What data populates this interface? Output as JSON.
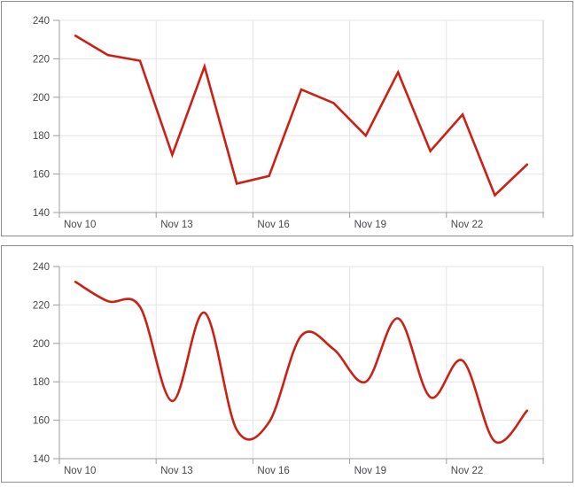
{
  "style": {
    "line_color": "#cc2015",
    "grid_color": "#e4e4e4",
    "axis_color": "#9c9c9c",
    "right_frame_color": "#c9c9c9",
    "label_color": "#47474d",
    "panel_border_color": "#8f8f8f",
    "panel_background": "#ffffff",
    "line_width": 2.6
  },
  "chart_data": [
    {
      "id": "linear-line-chart",
      "type": "line",
      "smoothing": "none",
      "title": "",
      "xlabel": "",
      "ylabel": "",
      "legend": "none",
      "grid": true,
      "x": [
        "Nov 10",
        "Nov 11",
        "Nov 12",
        "Nov 13",
        "Nov 14",
        "Nov 15",
        "Nov 16",
        "Nov 17",
        "Nov 18",
        "Nov 19",
        "Nov 20",
        "Nov 21",
        "Nov 22",
        "Nov 23",
        "Nov 24"
      ],
      "series": [
        {
          "name": "value",
          "color": "#cc2015",
          "values": [
            232,
            222,
            219,
            170,
            216,
            155,
            159,
            204,
            197,
            180,
            213,
            172,
            191,
            149,
            165
          ]
        }
      ],
      "ylim": [
        140,
        240
      ],
      "y_ticks": [
        140,
        160,
        180,
        200,
        220,
        240
      ],
      "x_tick_labels": [
        "Nov 10",
        "Nov 13",
        "Nov 16",
        "Nov 19",
        "Nov 22"
      ],
      "x_tick_every": 3
    },
    {
      "id": "spline-line-chart",
      "type": "line",
      "smoothing": "spline",
      "title": "",
      "xlabel": "",
      "ylabel": "",
      "legend": "none",
      "grid": true,
      "x": [
        "Nov 10",
        "Nov 11",
        "Nov 12",
        "Nov 13",
        "Nov 14",
        "Nov 15",
        "Nov 16",
        "Nov 17",
        "Nov 18",
        "Nov 19",
        "Nov 20",
        "Nov 21",
        "Nov 22",
        "Nov 23",
        "Nov 24"
      ],
      "series": [
        {
          "name": "value",
          "color": "#cc2015",
          "values": [
            232,
            222,
            219,
            170,
            216,
            155,
            159,
            204,
            197,
            180,
            213,
            172,
            191,
            149,
            165
          ]
        }
      ],
      "ylim": [
        140,
        240
      ],
      "y_ticks": [
        140,
        160,
        180,
        200,
        220,
        240
      ],
      "x_tick_labels": [
        "Nov 10",
        "Nov 13",
        "Nov 16",
        "Nov 19",
        "Nov 22"
      ],
      "x_tick_every": 3
    }
  ]
}
